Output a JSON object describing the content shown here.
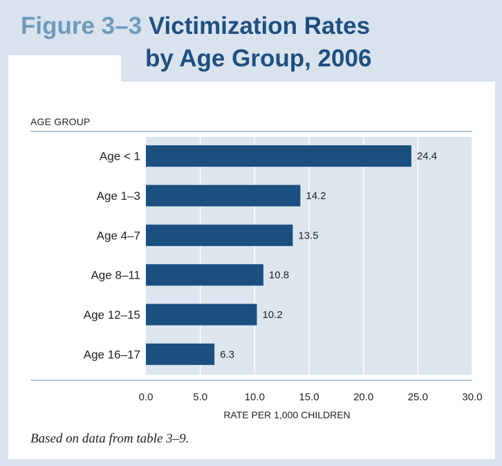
{
  "figure": {
    "label": "Figure 3–3",
    "title_line1": "Victimization Rates",
    "title_line2": "by Age Group, 2006"
  },
  "chart_data": {
    "type": "bar",
    "orientation": "horizontal",
    "title": "Victimization Rates by Age Group, 2006",
    "ylabel": "AGE GROUP",
    "xlabel": "RATE PER 1,000 CHILDREN",
    "categories": [
      "Age < 1",
      "Age 1–3",
      "Age 4–7",
      "Age 8–11",
      "Age 12–15",
      "Age 16–17"
    ],
    "values": [
      24.4,
      14.2,
      13.5,
      10.8,
      10.2,
      6.3
    ],
    "value_labels": [
      "24.4",
      "14.2",
      "13.5",
      "10.8",
      "10.2",
      "6.3"
    ],
    "xlim": [
      0,
      30
    ],
    "xticks": [
      "0.0",
      "5.0",
      "10.0",
      "15.0",
      "20.0",
      "25.0",
      "30.0"
    ],
    "grid": true,
    "colors": {
      "bar": "#1a4f80",
      "plot_bg": "#dde6ee",
      "axis_line": "#9db6cc"
    }
  },
  "source_note": "Based on data from table 3–9."
}
